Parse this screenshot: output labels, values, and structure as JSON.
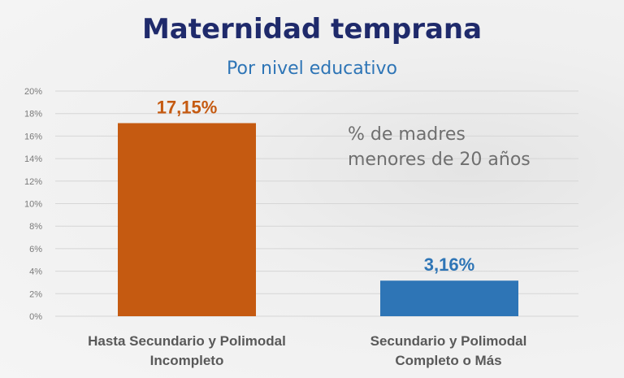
{
  "chart_data": {
    "type": "bar",
    "title": "Maternidad temprana",
    "subtitle": "Por nivel educativo",
    "annotation": [
      "% de madres",
      "menores de 20 años"
    ],
    "categories": [
      [
        "Hasta Secundario y Polimodal",
        "Incompleto"
      ],
      [
        "Secundario y Polimodal",
        "Completo o Más"
      ]
    ],
    "values": [
      17.15,
      3.16
    ],
    "data_labels": [
      "17,15%",
      "3,16%"
    ],
    "colors": [
      "#c55a11",
      "#2e75b6"
    ],
    "ylim": [
      0,
      20
    ],
    "yticks": [
      0,
      2,
      4,
      6,
      8,
      10,
      12,
      14,
      16,
      18,
      20
    ],
    "ytick_labels": [
      "0%",
      "2%",
      "4%",
      "6%",
      "8%",
      "10%",
      "12%",
      "14%",
      "16%",
      "18%",
      "20%"
    ],
    "grid": true,
    "xlabel": "",
    "ylabel": ""
  }
}
